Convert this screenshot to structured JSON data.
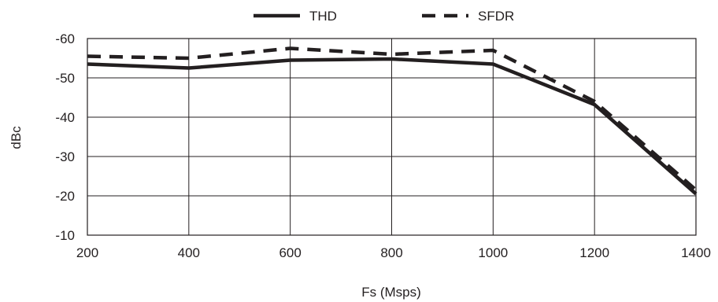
{
  "chart_data": {
    "type": "line",
    "title": "",
    "xlabel": "Fs (Msps)",
    "ylabel": "dBc",
    "x": [
      200,
      400,
      600,
      800,
      1000,
      1200,
      1400
    ],
    "x_ticks": [
      "200",
      "400",
      "600",
      "800",
      "1000",
      "1200",
      "1400"
    ],
    "y_ticks": [
      "-60",
      "-50",
      "-40",
      "-30",
      "-20",
      "-10"
    ],
    "xlim": [
      200,
      1400
    ],
    "ylim": [
      -60,
      -10
    ],
    "y_axis_reversed": true,
    "grid": true,
    "legend_position": "top-center",
    "series": [
      {
        "name": "THD",
        "style": "solid",
        "color": "#231f20",
        "values": [
          -53.5,
          -52.5,
          -54.5,
          -54.8,
          -53.5,
          -43.2,
          -20.5
        ]
      },
      {
        "name": "SFDR",
        "style": "dashed",
        "color": "#231f20",
        "values": [
          -55.5,
          -55.0,
          -57.5,
          -56.0,
          -57.0,
          -44.0,
          -21.5
        ]
      }
    ]
  }
}
